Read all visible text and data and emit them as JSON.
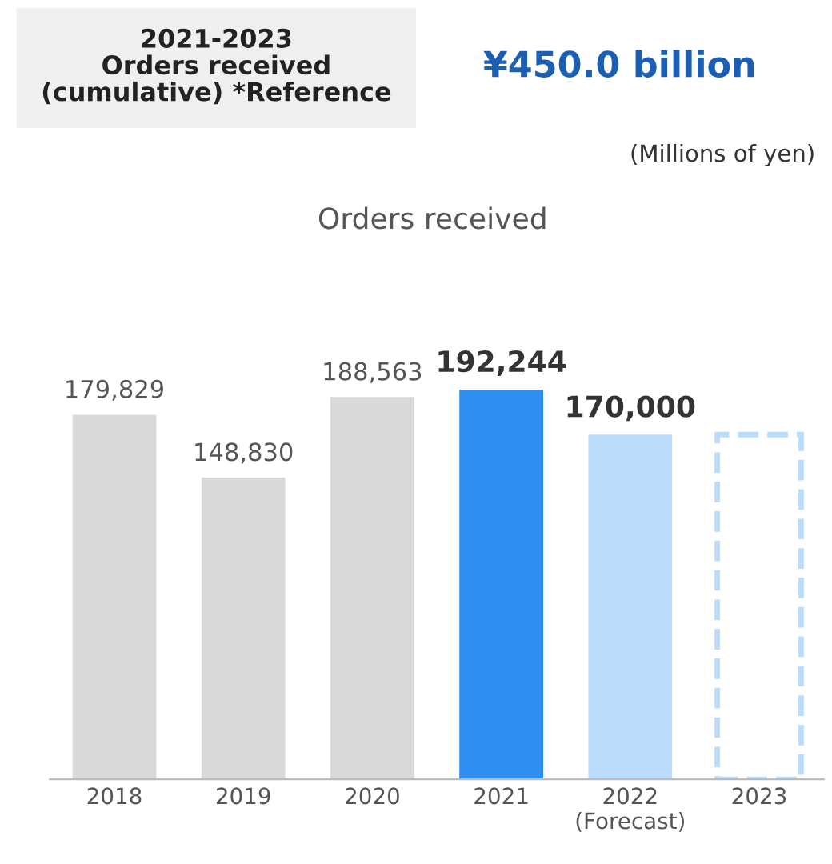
{
  "chart_data": {
    "type": "bar",
    "title": "Orders received",
    "categories": [
      "2018",
      "2019",
      "2020",
      "2021",
      "2022\n(Forecast)",
      "2023"
    ],
    "series": [
      {
        "colors": [
          "#d9d9d9",
          "#d9d9d9",
          "#d9d9d9",
          "#2e8ff0",
          "#bcdcfb",
          "#d9d9d9"
        ],
        "values": [
          179829,
          148830,
          188563,
          192244,
          170000,
          null
        ],
        "value_labels": [
          "179,829",
          "148,830",
          "188,563",
          "192,244",
          "170,000",
          null
        ],
        "line_style": "solid"
      },
      {
        "color": "#bcdcfb",
        "values": [
          null,
          null,
          null,
          null,
          null,
          170000
        ],
        "line_style": "dashed"
      }
    ],
    "annotations": [
      "2021-2023\nOrders received\n(cumulative) *Reference",
      "¥450.0 billion",
      "(Millions of yen)"
    ],
    "grid": false,
    "legend": false
  }
}
